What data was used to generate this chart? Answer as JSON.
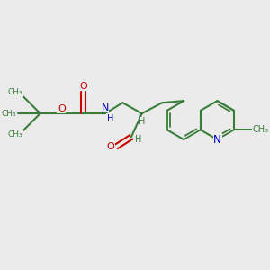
{
  "bg_color": "#ebebeb",
  "bond_color": "#3a7d3a",
  "n_color": "#0000cc",
  "o_color": "#cc0000",
  "lw": 1.5,
  "lw_inner": 1.3,
  "fs": 7.5,
  "fs_small": 6.5,
  "fig_w": 3.0,
  "fig_h": 3.0,
  "dpi": 100,
  "xlim": [
    0,
    10
  ],
  "ylim": [
    0,
    10
  ]
}
